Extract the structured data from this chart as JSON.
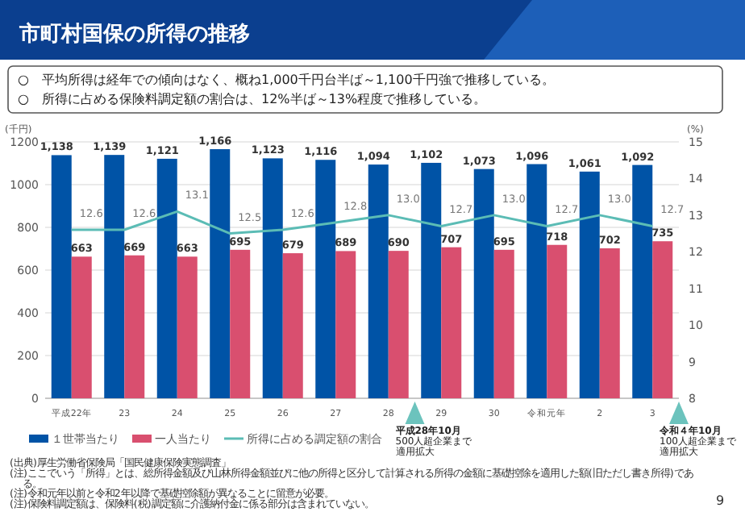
{
  "chart_data": {
    "type": "bar",
    "title": "市町村国保の所得の推移",
    "subtitle": "○　平均所得は経年での傾向はなく、概ね1,000千円台半ば～1,100千円強で推移している。\n○　所得に占める保険料調定額の割合は、12%半ば～13%程度で推移している。",
    "ylabel": "(千円)",
    "y2label": "(%)",
    "categories": [
      "平成22年",
      "23",
      "24",
      "25",
      "26",
      "27",
      "28",
      "29",
      "30",
      "令和元年",
      "2",
      "3"
    ],
    "series": [
      {
        "name": "１世帯当たり",
        "color": "#0053a6",
        "values": [
          1138,
          1139,
          1121,
          1166,
          1123,
          1116,
          1094,
          1102,
          1073,
          1096,
          1061,
          1092
        ],
        "value_labels": [
          "1,138",
          "1,139",
          "1,121",
          "1,166",
          "1,123",
          "1,116",
          "1,094",
          "1,102",
          "1,073",
          "1,096",
          "1,061",
          "1,092"
        ]
      },
      {
        "name": "一人当たり",
        "color": "#d94f6f",
        "values": [
          663,
          669,
          663,
          695,
          679,
          689,
          690,
          707,
          695,
          718,
          702,
          735
        ]
      },
      {
        "name": "所得に占める調定額の割合",
        "color": "#5bbcb5",
        "type": "line",
        "axis": "y2",
        "values": [
          12.6,
          12.6,
          13.1,
          12.5,
          12.6,
          12.8,
          13.0,
          12.7,
          13.0,
          12.7,
          13.0,
          12.7
        ],
        "value_labels": [
          "12.6",
          "12.6",
          "13.1",
          "12.5",
          "12.6",
          "12.8",
          "13.0",
          "12.7",
          "13.0",
          "12.7",
          "13.0",
          "12.7"
        ]
      }
    ],
    "ylim": [
      0,
      1200
    ],
    "yticks": [
      0,
      200,
      400,
      600,
      800,
      1000,
      1200
    ],
    "y2lim": [
      8,
      15
    ],
    "y2ticks": [
      8,
      9,
      10,
      11,
      12,
      13,
      14,
      15
    ],
    "grid": "y",
    "legend": "bottom left",
    "data_labels": true,
    "annotations": [
      "平成28年10月\n500人超企業まで適用拡大",
      "令和４年10月\n100人超企業まで適用拡大",
      "(出典)厚生労働省保険局「国民健康保険実態調査」",
      "(注)ここでいう「所得」とは、総所得金額及び山林所得金額並びに他の所得と区分して計算される所得の金額に基礎控除を適用した額(旧ただし書き所得)である。",
      "(注)令和元年以前と令和2年以降で基礎控除額が異なることに留意が必要。",
      "(注)保険料調定額は、保険料(税)調定額に介護納付金に係る部分は含まれていない。",
      "9"
    ]
  }
}
